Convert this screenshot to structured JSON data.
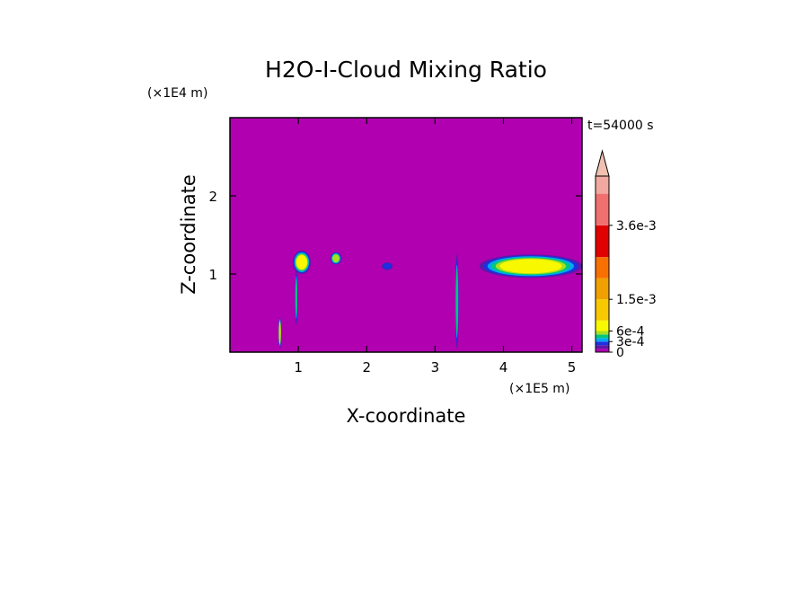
{
  "chart_data": {
    "type": "heatmap",
    "title": "H2O-I-Cloud Mixing Ratio",
    "xlabel": "X-coordinate",
    "ylabel": "Z-coordinate",
    "x_unit": "(×1E5 m)",
    "y_unit": "(×1E4 m)",
    "time_label": "t=54000 s",
    "xlim": [
      0,
      5.15
    ],
    "ylim": [
      0,
      3.0
    ],
    "x_ticks": [
      1,
      2,
      3,
      4,
      5
    ],
    "y_ticks": [
      1,
      2
    ],
    "colorbar": {
      "extend": "max",
      "labels": [
        {
          "value": 0,
          "text": "0"
        },
        {
          "value": 0.0003,
          "text": "3e-4"
        },
        {
          "value": 0.0006,
          "text": "6e-4"
        },
        {
          "value": 0.0015,
          "text": "1.5e-3"
        },
        {
          "value": 0.0036,
          "text": "3.6e-3"
        }
      ],
      "levels": [
        {
          "from": 0,
          "to": 0.0001,
          "color": "#b000b0"
        },
        {
          "from": 0.0001,
          "to": 0.0002,
          "color": "#5a1aa8"
        },
        {
          "from": 0.0002,
          "to": 0.0003,
          "color": "#1e2ee0"
        },
        {
          "from": 0.0003,
          "to": 0.0004,
          "color": "#00a8f0"
        },
        {
          "from": 0.0004,
          "to": 0.0005,
          "color": "#00c878"
        },
        {
          "from": 0.0005,
          "to": 0.0006,
          "color": "#a8e020"
        },
        {
          "from": 0.0006,
          "to": 0.0009,
          "color": "#f8f800"
        },
        {
          "from": 0.0009,
          "to": 0.0015,
          "color": "#f8c800"
        },
        {
          "from": 0.0015,
          "to": 0.0021,
          "color": "#f0a000"
        },
        {
          "from": 0.0021,
          "to": 0.0027,
          "color": "#f87000"
        },
        {
          "from": 0.0027,
          "to": 0.0036,
          "color": "#e00000"
        },
        {
          "from": 0.0036,
          "to": 0.0045,
          "color": "#f07070"
        },
        {
          "from": 0.0045,
          "to": 0.005,
          "color": "#f0a8a0"
        }
      ],
      "over_color": "#f0c0b0"
    },
    "background_value": 0,
    "features": [
      {
        "x": 1.05,
        "z": 1.15,
        "rx": 0.13,
        "rz": 0.15,
        "value": 0.0007
      },
      {
        "x": 0.97,
        "z": 0.7,
        "rx": 0.02,
        "rz": 0.35,
        "value": 0.0004
      },
      {
        "x": 1.55,
        "z": 1.2,
        "rx": 0.08,
        "rz": 0.08,
        "value": 0.0005
      },
      {
        "x": 2.3,
        "z": 1.1,
        "rx": 0.08,
        "rz": 0.05,
        "value": 0.0002
      },
      {
        "x": 3.32,
        "z": 0.65,
        "rx": 0.025,
        "rz": 0.6,
        "value": 0.0004
      },
      {
        "x": 4.4,
        "z": 1.1,
        "rx": 0.75,
        "rz": 0.15,
        "value": 0.0008
      },
      {
        "x": 0.73,
        "z": 0.25,
        "rx": 0.02,
        "rz": 0.2,
        "value": 0.0012
      }
    ]
  }
}
